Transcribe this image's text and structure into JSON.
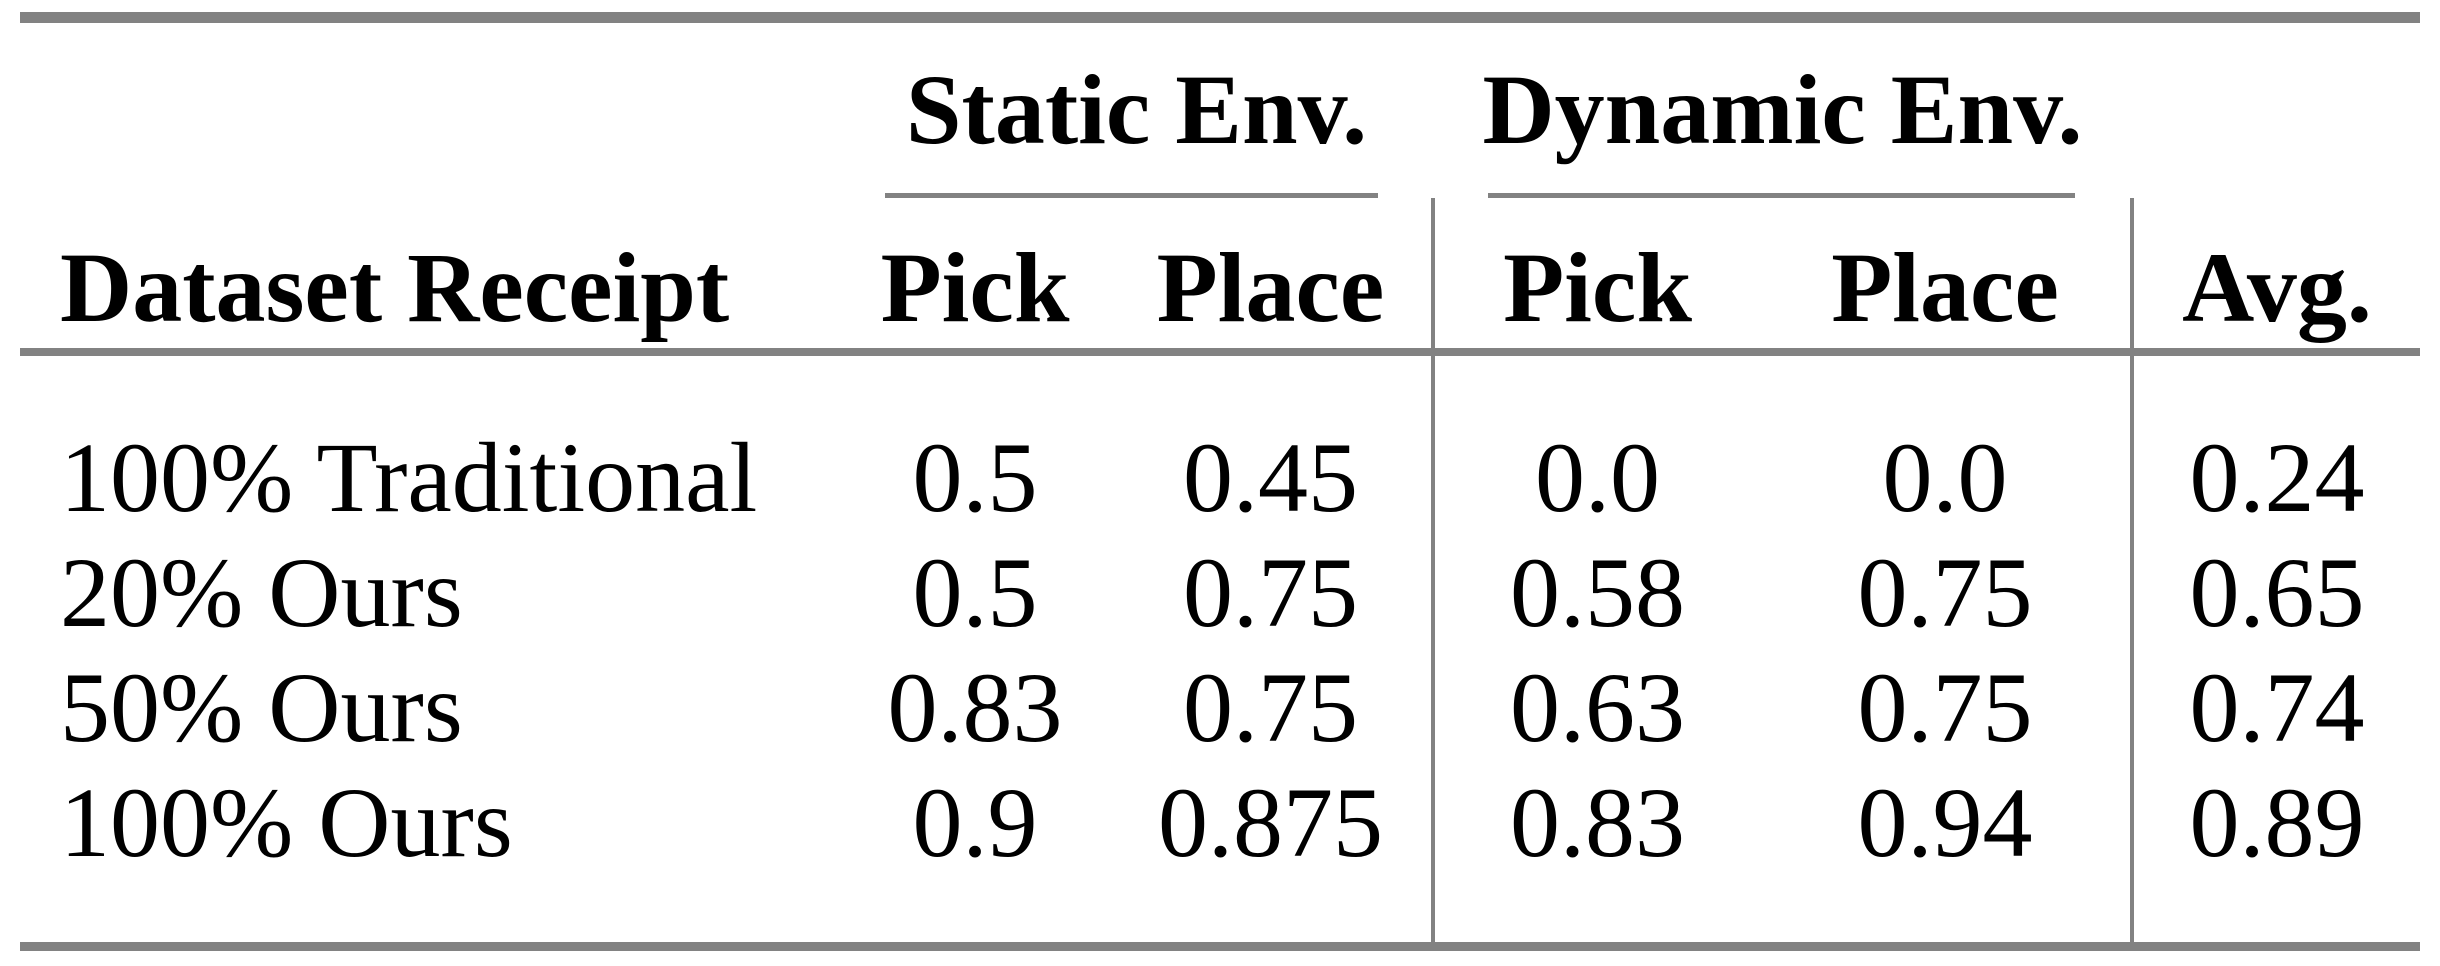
{
  "page": {
    "background": "#ffffff",
    "rule_color": "#828282",
    "text_color": "#000000"
  },
  "table": {
    "header": {
      "row_label_header": "Dataset Receipt",
      "groups": [
        {
          "label": "Static Env.",
          "columns": [
            "Pick",
            "Place"
          ]
        },
        {
          "label": "Dynamic Env.",
          "columns": [
            "Pick",
            "Place"
          ]
        }
      ],
      "avg_header": "Avg."
    },
    "rows": [
      {
        "label": "100% Traditional",
        "values": [
          "0.5",
          "0.45",
          "0.0",
          "0.0",
          "0.24"
        ]
      },
      {
        "label": "20% Ours",
        "values": [
          "0.5",
          "0.75",
          "0.58",
          "0.75",
          "0.65"
        ]
      },
      {
        "label": "50% Ours",
        "values": [
          "0.83",
          "0.75",
          "0.63",
          "0.75",
          "0.74"
        ]
      },
      {
        "label": "100% Ours",
        "values": [
          "0.9",
          "0.875",
          "0.83",
          "0.94",
          "0.89"
        ]
      }
    ]
  }
}
